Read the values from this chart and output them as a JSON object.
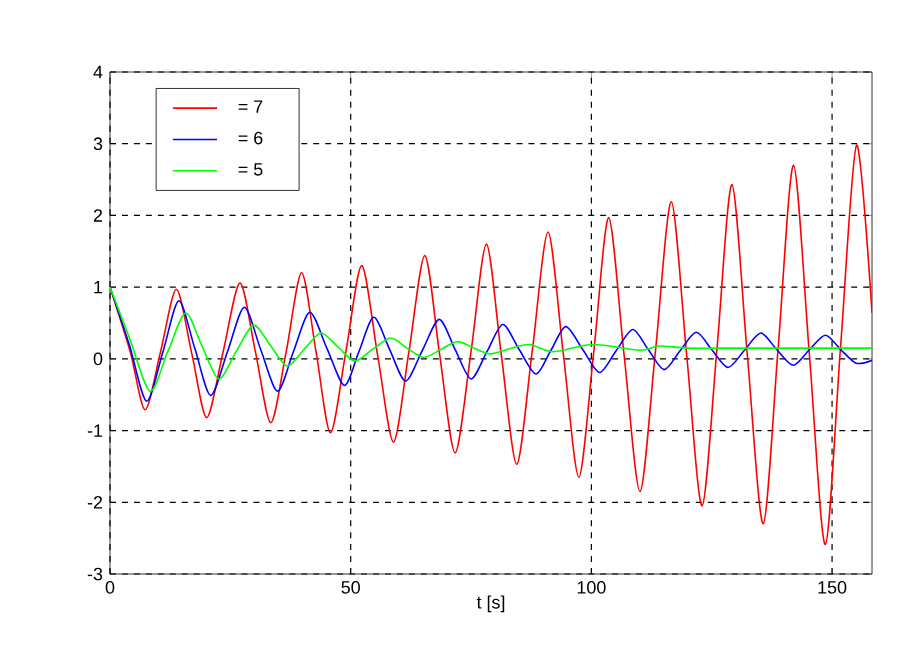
{
  "chart_data": {
    "type": "line",
    "xlabel": "t [s]",
    "xlim": [
      0,
      158.3
    ],
    "ylim": [
      -3,
      4
    ],
    "xticks": [
      0,
      50,
      100,
      150
    ],
    "yticks": [
      -3,
      -2,
      -1,
      0,
      1,
      2,
      3,
      4
    ],
    "grid": true,
    "legend": "top left",
    "series": [
      {
        "name": "= 7",
        "color": "#ff0000",
        "x": [
          0,
          4.2,
          7.3,
          10.5,
          13.8,
          17,
          20.1,
          23.5,
          27,
          30.2,
          33.4,
          36.6,
          39.8,
          42.8,
          45.8,
          49,
          52.3,
          55.6,
          58.9,
          62.1,
          65.4,
          68.5,
          71.7,
          75,
          78.2,
          81.3,
          84.5,
          87.7,
          91,
          94.2,
          97.4,
          100.5,
          103.6,
          106.8,
          110.1,
          113.3,
          116.6,
          119.8,
          123,
          126.1,
          129.2,
          132.4,
          135.7,
          138.8,
          142,
          145.3,
          148.6,
          151.8,
          155.1,
          158.3
        ],
        "values": [
          1,
          0.1,
          -0.71,
          0.1,
          0.97,
          0.07,
          -0.82,
          0.1,
          1.06,
          0.1,
          -0.89,
          0.1,
          1.2,
          0.1,
          -1.03,
          0.1,
          1.3,
          0.05,
          -1.16,
          0.1,
          1.44,
          0.05,
          -1.31,
          0.1,
          1.6,
          0.05,
          -1.47,
          0.1,
          1.77,
          0.05,
          -1.65,
          0.1,
          1.97,
          0.05,
          -1.85,
          0.1,
          2.19,
          0.05,
          -2.05,
          0.15,
          2.43,
          0.05,
          -2.3,
          0.15,
          2.7,
          0.05,
          -2.59,
          0.2,
          2.98,
          0.64
        ]
      },
      {
        "name": "= 6",
        "color": "#0000ff",
        "x": [
          0,
          4,
          7.6,
          11,
          14.3,
          17.6,
          20.9,
          24.4,
          27.9,
          31.3,
          34.8,
          38.1,
          41.5,
          45.1,
          48.7,
          51.7,
          54.8,
          58.1,
          61.4,
          64.9,
          68.4,
          71.7,
          75,
          78.3,
          81.6,
          85,
          88.5,
          91.6,
          94.7,
          98.2,
          101.7,
          105.1,
          108.6,
          111.8,
          115.1,
          118.4,
          121.8,
          125.1,
          128.4,
          131.8,
          135.2,
          138.5,
          141.9,
          145.2,
          148.6,
          151.8,
          155,
          158.3
        ],
        "values": [
          1,
          0.2,
          -0.59,
          0.1,
          0.81,
          0.15,
          -0.51,
          0.1,
          0.72,
          0.13,
          -0.45,
          0.1,
          0.65,
          0.14,
          -0.37,
          0.1,
          0.58,
          0.13,
          -0.31,
          0.12,
          0.55,
          0.13,
          -0.28,
          0.1,
          0.48,
          0.13,
          -0.21,
          0.12,
          0.45,
          0.13,
          -0.19,
          0.11,
          0.41,
          0.13,
          -0.15,
          0.11,
          0.37,
          0.12,
          -0.12,
          0.12,
          0.36,
          0.13,
          -0.09,
          0.12,
          0.33,
          0.13,
          -0.06,
          -0.02
        ]
      },
      {
        "name": "= 5",
        "color": "#00ff00",
        "x": [
          0,
          4,
          8.3,
          12,
          15.7,
          19.1,
          22.6,
          26.2,
          29.8,
          33.3,
          36.8,
          40.3,
          43.8,
          47.3,
          50.8,
          54.5,
          58.3,
          61.7,
          65.2,
          68.7,
          72.2,
          75.6,
          79,
          83,
          87.1,
          92,
          100.3,
          110,
          114,
          120,
          130,
          140,
          150,
          158.3
        ],
        "values": [
          1,
          0.3,
          -0.45,
          0.1,
          0.64,
          0.18,
          -0.28,
          0.1,
          0.47,
          0.19,
          -0.1,
          0.13,
          0.36,
          0.17,
          -0.03,
          0.13,
          0.29,
          0.15,
          0.02,
          0.13,
          0.24,
          0.15,
          0.07,
          0.14,
          0.2,
          0.1,
          0.2,
          0.12,
          0.18,
          0.15,
          0.15,
          0.15,
          0.15,
          0.15
        ]
      }
    ]
  }
}
